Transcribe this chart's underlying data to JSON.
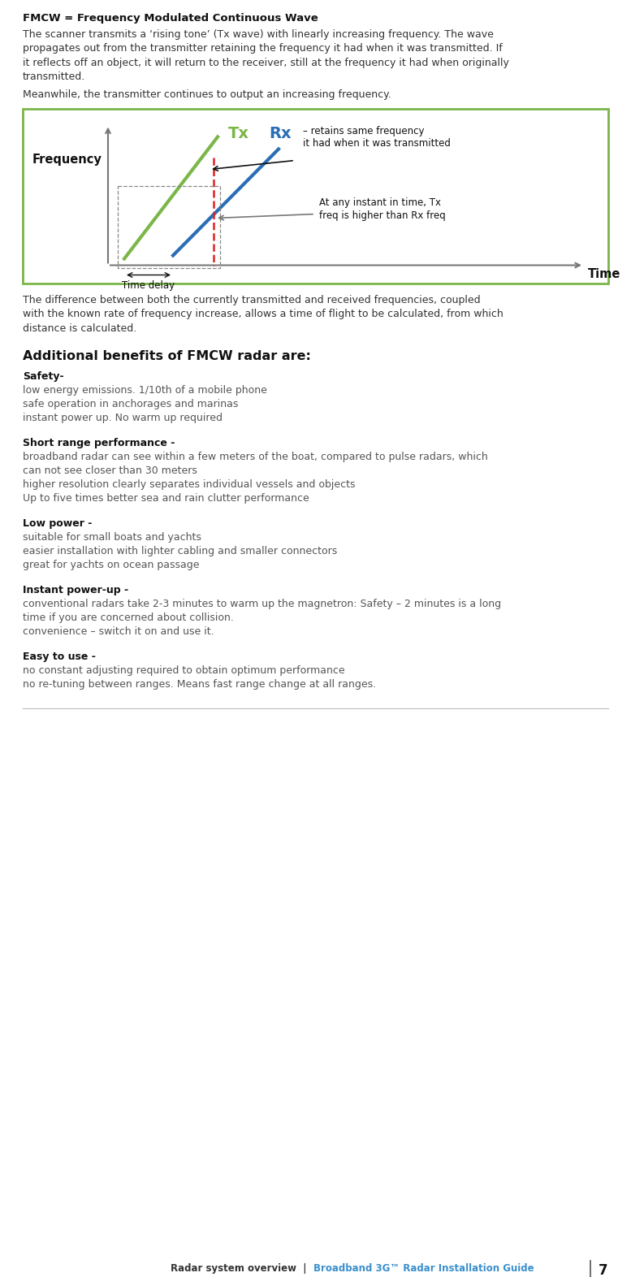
{
  "bg_color": "#ffffff",
  "title_bold": "FMCW = Frequency Modulated Continuous Wave",
  "intro_lines": [
    "The scanner transmits a ‘rising tone’ (Tx wave) with linearly increasing frequency. The wave",
    "propagates out from the transmitter retaining the frequency it had when it was transmitted. If",
    "it reflects off an object, it will return to the receiver, still at the frequency it had when originally",
    "transmitted."
  ],
  "meanwhile_text": "Meanwhile, the transmitter continues to output an increasing frequency.",
  "post_diagram_lines": [
    "The difference between both the currently transmitted and received frequencies, coupled",
    "with the known rate of frequency increase, allows a time of flight to be calculated, from which",
    "distance is calculated."
  ],
  "section_heading": "Additional benefits of FMCW radar are:",
  "sections": [
    {
      "heading": "Safety-",
      "items": [
        [
          "low energy emissions. 1/10th of a mobile phone"
        ],
        [
          "safe operation in anchorages and marinas"
        ],
        [
          "instant power up. No warm up required"
        ]
      ]
    },
    {
      "heading": "Short range performance -",
      "items": [
        [
          "broadband radar can see within a few meters of the boat, compared to pulse radars, which",
          "can not see closer than 30 meters"
        ],
        [
          "higher resolution clearly separates individual vessels and objects"
        ],
        [
          "Up to five times better sea and rain clutter performance"
        ]
      ]
    },
    {
      "heading": "Low power -",
      "items": [
        [
          "suitable for small boats and yachts"
        ],
        [
          "easier installation with lighter cabling and smaller connectors"
        ],
        [
          "great for yachts on ocean passage"
        ]
      ]
    },
    {
      "heading": "Instant power-up -",
      "items": [
        [
          "conventional radars take 2-3 minutes to warm up the magnetron: Safety – 2 minutes is a long",
          "time if you are concerned about collision."
        ],
        [
          "convenience – switch it on and use it."
        ]
      ]
    },
    {
      "heading": "Easy to use -",
      "items": [
        [
          "no constant adjusting required to obtain optimum performance"
        ],
        [
          "no re-tuning between ranges. Means fast range change at all ranges."
        ]
      ]
    }
  ],
  "footer_left": "Radar system overview  |  ",
  "footer_right": "Broadband 3G™ Radar Installation Guide",
  "footer_page": "7",
  "diagram_border_color": "#7ab648",
  "tx_color": "#7ab648",
  "rx_color": "#2a6eb5",
  "dashed_color": "#dd2222",
  "axis_color": "#777777",
  "footer_link_color": "#3a8fcc"
}
